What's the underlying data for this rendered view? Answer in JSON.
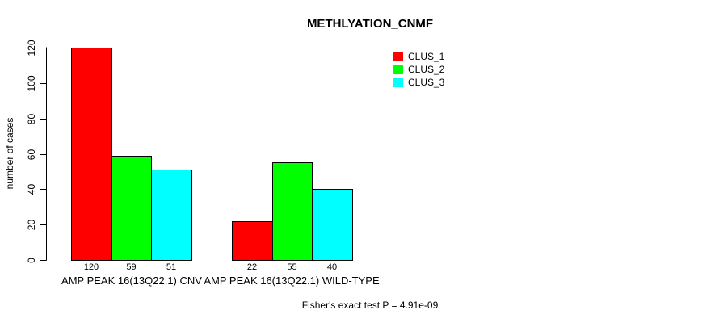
{
  "chart_data": {
    "type": "bar",
    "title": "METHLYATION_CNMF",
    "xlabel": "",
    "ylabel": "number of cases",
    "ylim": [
      0,
      120
    ],
    "yticks": [
      0,
      20,
      40,
      60,
      80,
      100,
      120
    ],
    "grid": false,
    "legend_position": "top-right",
    "categories": [
      "AMP PEAK 16(13Q22.1) CNV",
      "AMP PEAK 16(13Q22.1) WILD-TYPE"
    ],
    "series": [
      {
        "name": "CLUS_1",
        "color": "#FF0000",
        "values": [
          120,
          22
        ]
      },
      {
        "name": "CLUS_2",
        "color": "#00FF00",
        "values": [
          59,
          55
        ]
      },
      {
        "name": "CLUS_3",
        "color": "#00FFFF",
        "values": [
          51,
          40
        ]
      }
    ],
    "show_bar_values": true,
    "annotation": "Fisher's exact test P = 4.91e-09",
    "colors": {
      "bar_border": "#000000",
      "axis": "#000000",
      "text": "#000000",
      "background": "#FFFFFF"
    }
  }
}
